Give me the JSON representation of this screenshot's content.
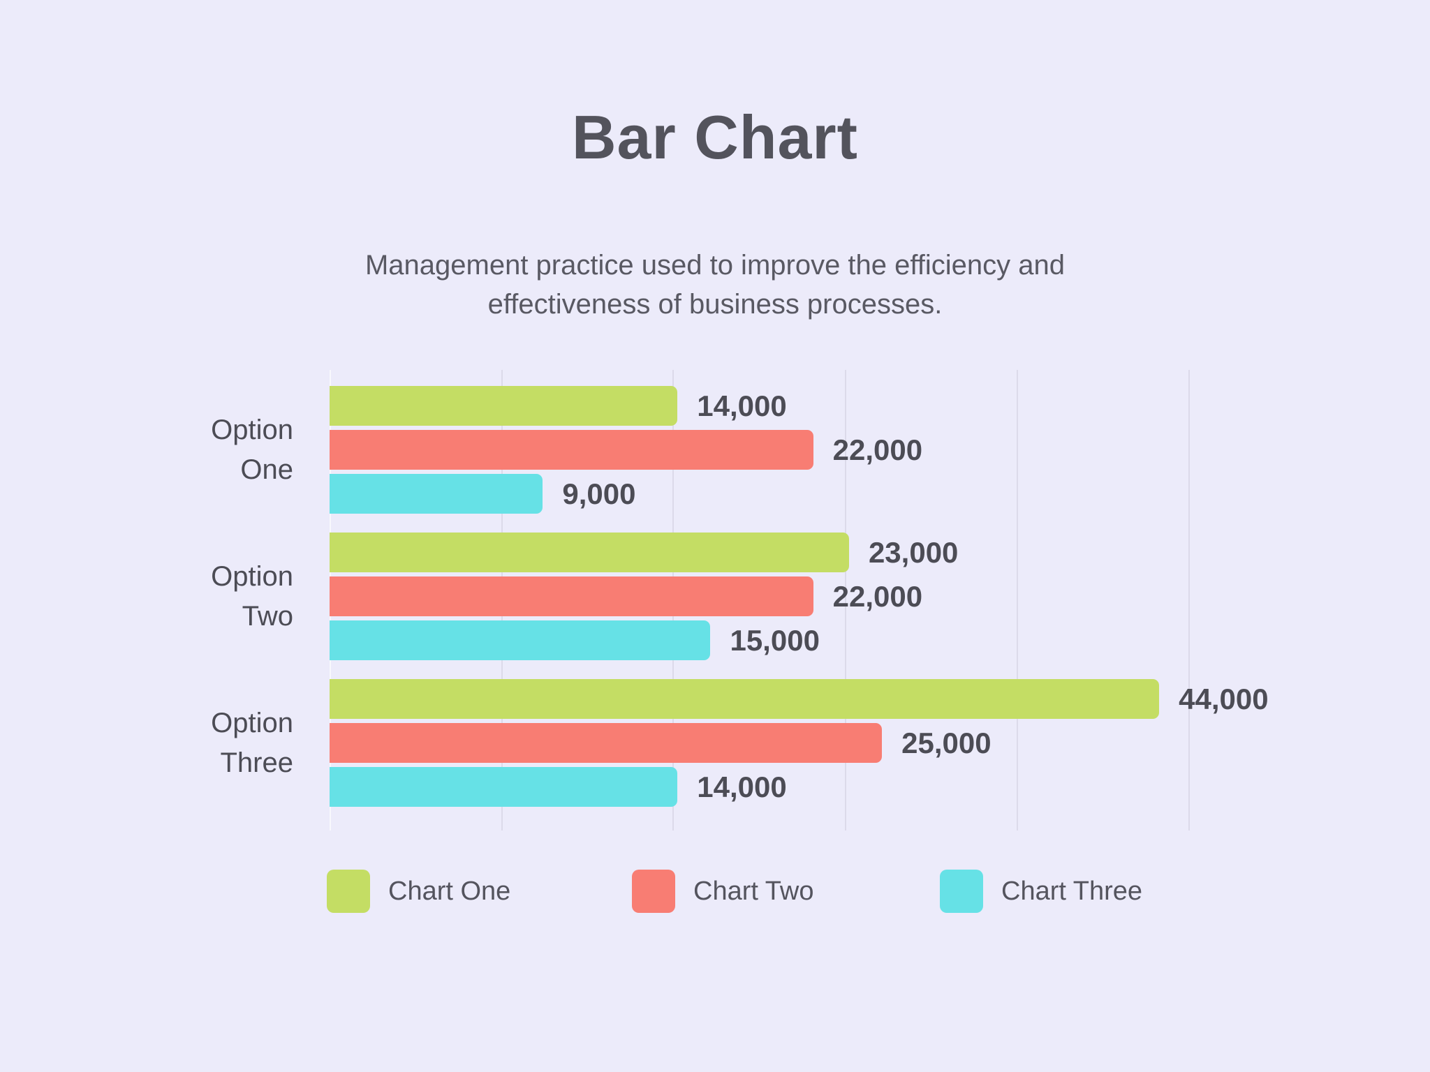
{
  "page": {
    "title": "Bar Chart",
    "subtitle_lines": [
      "Management practice used to improve the efficiency and",
      "effectiveness of business processes."
    ],
    "background_color": "#ECEBFA",
    "title_color": "#53535C",
    "text_color": "#4C4C55"
  },
  "chart_data": {
    "type": "bar",
    "orientation": "horizontal",
    "title": "Bar Chart",
    "subtitle": "Management practice used to improve the efficiency and effectiveness of business processes.",
    "categories": [
      "Option One",
      "Option Two",
      "Option Three"
    ],
    "series": [
      {
        "name": "Chart One",
        "color": "#C4DD64",
        "values": [
          14000,
          23000,
          44000
        ],
        "labels": [
          "14,000",
          "23,000",
          "44,000"
        ]
      },
      {
        "name": "Chart Two",
        "color": "#F87D73",
        "values": [
          22000,
          22000,
          25000
        ],
        "labels": [
          "22,000",
          "22,000",
          "25,000"
        ]
      },
      {
        "name": "Chart Three",
        "color": "#66E1E6",
        "values": [
          9000,
          15000,
          14000
        ],
        "labels": [
          "9,000",
          "15,000",
          "14,000"
        ]
      }
    ],
    "legend": {
      "position": "bottom",
      "entries": [
        "Chart One",
        "Chart Two",
        "Chart Three"
      ]
    },
    "grid": "vertical-gridlines",
    "value_labels_shown": true,
    "axis_ticks_shown": false,
    "layout_hints": {
      "bar_length_pct": [
        [
          35.9,
          53.6,
          85.6
        ],
        [
          49.9,
          49.9,
          57.0
        ],
        [
          22.0,
          39.3,
          35.9
        ]
      ],
      "gridline_pct": [
        17.7,
        35.4,
        53.2,
        70.9,
        88.6
      ],
      "gridline_color": "#DCDAEA"
    }
  }
}
